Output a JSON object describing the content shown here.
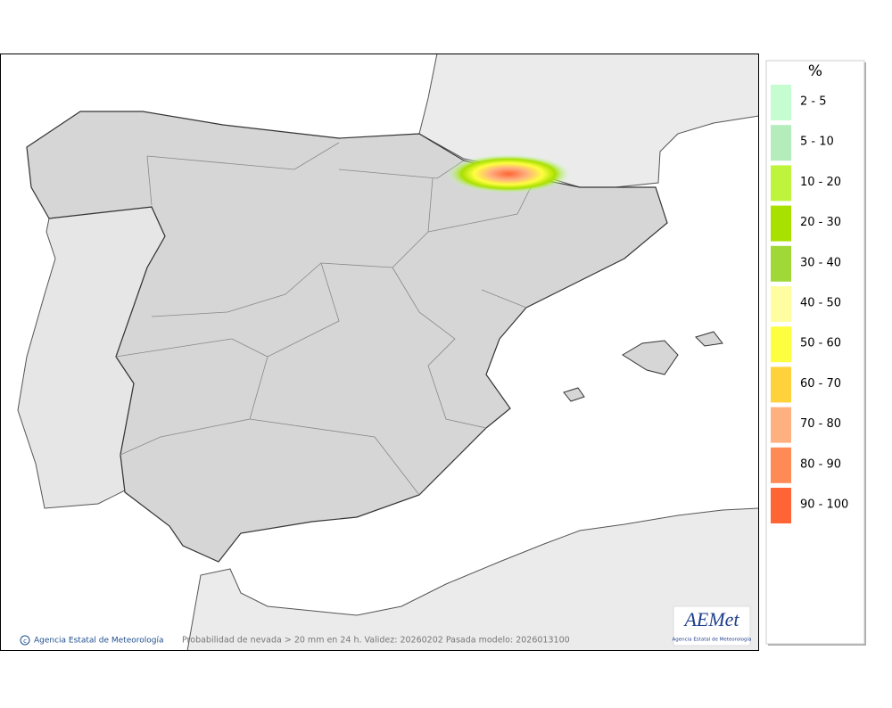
{
  "legend": {
    "title": "%",
    "items": [
      {
        "label": "2 - 5",
        "color": "#c6fdd0"
      },
      {
        "label": "5 - 10",
        "color": "#b4ecbc"
      },
      {
        "label": "10 - 20",
        "color": "#bef53c"
      },
      {
        "label": "20 - 30",
        "color": "#a8e000"
      },
      {
        "label": "30 - 40",
        "color": "#a0d838"
      },
      {
        "label": "40 - 50",
        "color": "#fefea0"
      },
      {
        "label": "50 - 60",
        "color": "#fefe40"
      },
      {
        "label": "60 - 70",
        "color": "#ffd23c"
      },
      {
        "label": "70 - 80",
        "color": "#ffb080"
      },
      {
        "label": "80 - 90",
        "color": "#ff8a55"
      },
      {
        "label": "90 - 100",
        "color": "#ff6434"
      }
    ]
  },
  "footer": {
    "credit": "Agencia Estatal de Meteorología",
    "caption": "Probabilidad de nevada > 20 mm en 24 h. Validez: 20260202 Pasada modelo: 2026013100"
  },
  "logo": {
    "name": "AEMet",
    "subtitle": "Agencia Estatal de Meteorología"
  }
}
